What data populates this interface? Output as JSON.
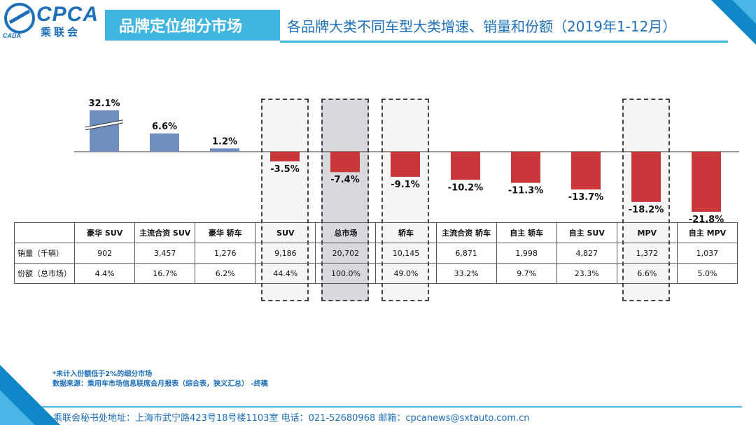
{
  "header": {
    "logo_text": "CPCA",
    "logo_sub": "乘联会",
    "logo_mark": "CADA",
    "title": "品牌定位细分市场",
    "subtitle": "各品牌大类不同车型大类增速、销量和份额（2019年1-12月）"
  },
  "colors": {
    "positive": "#6d8ebf",
    "negative": "#c9373b",
    "accent": "#3fb5e0",
    "brand": "#1d6fb8"
  },
  "chart_data": {
    "type": "bar",
    "title": "各品牌大类不同车型大类增速、销量和份额（2019年1-12月）",
    "categories": [
      "豪华 SUV",
      "主流合资 SUV",
      "豪华 轿车",
      "SUV",
      "总市场",
      "轿车",
      "主流合资 轿车",
      "自主 轿车",
      "自主 SUV",
      "MPV",
      "自主 MPV"
    ],
    "values": [
      32.1,
      6.6,
      1.2,
      -3.5,
      -7.4,
      -9.1,
      -10.2,
      -11.3,
      -13.7,
      -18.2,
      -21.8
    ],
    "value_labels": [
      "32.1%",
      "6.6%",
      "1.2%",
      "-3.5%",
      "-7.4%",
      "-9.1%",
      "-10.2%",
      "-11.3%",
      "-13.7%",
      "-18.2%",
      "-21.8%"
    ],
    "axis_break": {
      "category_index": 0
    },
    "highlighted": [
      "SUV",
      "总市场",
      "轿车",
      "MPV"
    ],
    "emphasized": "总市场",
    "xlabel": "",
    "ylabel": "",
    "ylim": [
      -22,
      12
    ]
  },
  "table": {
    "rows": [
      {
        "label": "",
        "cells": [
          "豪华 SUV",
          "主流合资 SUV",
          "豪华 轿车",
          "SUV",
          "总市场",
          "轿车",
          "主流合资 轿车",
          "自主 轿车",
          "自主 SUV",
          "MPV",
          "自主 MPV"
        ]
      },
      {
        "label": "销量（千辆）",
        "cells": [
          "902",
          "3,457",
          "1,276",
          "9,186",
          "20,702",
          "10,145",
          "6,871",
          "1,998",
          "4,827",
          "1,372",
          "1,037"
        ]
      },
      {
        "label": "份额（总市场）",
        "cells": [
          "4.4%",
          "16.7%",
          "6.2%",
          "44.4%",
          "100.0%",
          "49.0%",
          "33.2%",
          "9.7%",
          "23.3%",
          "6.6%",
          "5.0%"
        ]
      }
    ]
  },
  "notes": {
    "line1": "*未计入份额低于2%的细分市场",
    "line2": "数据来源：乘用车市场信息联席会月报表（综合表，狭义汇总）    -终稿"
  },
  "footer": {
    "text": "乘联会秘书处地址：上海市武宁路423号18号楼1103室  电话：021-52680968   邮箱：cpcanews@sxtauto.com.cn"
  }
}
